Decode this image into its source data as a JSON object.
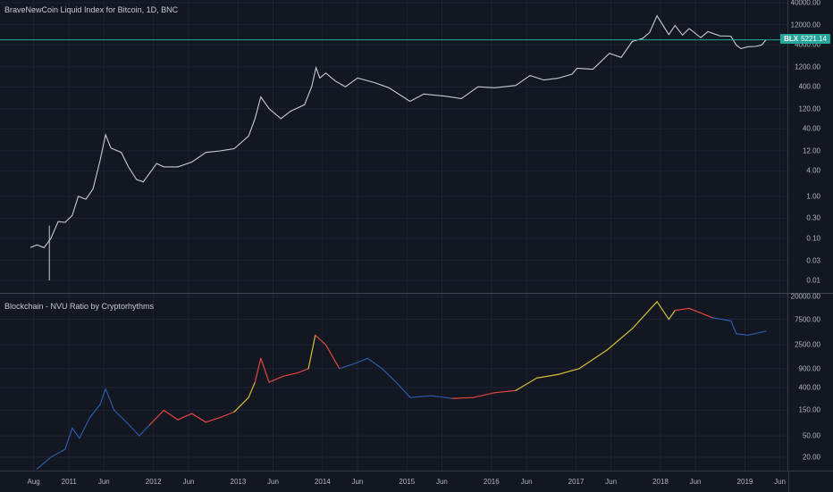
{
  "top_pane": {
    "title": "BraveNewCoin Liquid Index for Bitcoin, 1D, BNC",
    "symbol": "BLX",
    "last_price": "5221.14",
    "accent_color": "#26a69a"
  },
  "bottom_pane": {
    "title": "Blockchain - NVU Ratio by Cryptorhythms"
  },
  "chart_data": [
    {
      "type": "line",
      "scale": "log",
      "y_ticks": [
        "40000.00",
        "12000.00",
        "4000.00",
        "1200.00",
        "400.00",
        "120.00",
        "40.00",
        "12.00",
        "4.00",
        "1.00",
        "0.30",
        "0.10",
        "0.03",
        "0.01"
      ],
      "x_ticks": [
        "Aug",
        "2011",
        "Jun",
        "2012",
        "Jun",
        "2013",
        "Jun",
        "2014",
        "Jun",
        "2015",
        "Jun",
        "2016",
        "Jun",
        "2017",
        "Jun",
        "2018",
        "Jun",
        "2019",
        "Jun"
      ],
      "grid": true,
      "series": [
        {
          "color": "#c9cbd1",
          "points": [
            [
              "2010-07-18",
              0.06
            ],
            [
              "2010-08-15",
              0.07
            ],
            [
              "2010-09-15",
              0.06
            ],
            [
              "2010-10-15",
              0.1
            ],
            [
              "2010-11-15",
              0.25
            ],
            [
              "2010-12-15",
              0.24
            ],
            [
              "2011-01-15",
              0.35
            ],
            [
              "2011-02-10",
              1.0
            ],
            [
              "2011-03-15",
              0.85
            ],
            [
              "2011-04-15",
              1.5
            ],
            [
              "2011-05-15",
              7.0
            ],
            [
              "2011-06-08",
              29.0
            ],
            [
              "2011-07-01",
              14.0
            ],
            [
              "2011-08-15",
              11.0
            ],
            [
              "2011-09-15",
              5.0
            ],
            [
              "2011-10-20",
              2.5
            ],
            [
              "2011-11-18",
              2.2
            ],
            [
              "2012-01-15",
              6.0
            ],
            [
              "2012-02-15",
              5.0
            ],
            [
              "2012-04-15",
              5.0
            ],
            [
              "2012-06-15",
              6.5
            ],
            [
              "2012-08-15",
              11.0
            ],
            [
              "2012-10-15",
              12.0
            ],
            [
              "2012-12-15",
              13.5
            ],
            [
              "2013-02-15",
              27.0
            ],
            [
              "2013-03-15",
              70.0
            ],
            [
              "2013-04-09",
              230.0
            ],
            [
              "2013-05-15",
              120.0
            ],
            [
              "2013-07-05",
              70.0
            ],
            [
              "2013-08-15",
              105.0
            ],
            [
              "2013-10-15",
              150.0
            ],
            [
              "2013-11-15",
              400.0
            ],
            [
              "2013-12-04",
              1140.0
            ],
            [
              "2013-12-20",
              650.0
            ],
            [
              "2014-01-15",
              850.0
            ],
            [
              "2014-02-25",
              550.0
            ],
            [
              "2014-04-10",
              400.0
            ],
            [
              "2014-06-01",
              650.0
            ],
            [
              "2014-08-15",
              500.0
            ],
            [
              "2014-10-15",
              380.0
            ],
            [
              "2015-01-14",
              180.0
            ],
            [
              "2015-03-15",
              270.0
            ],
            [
              "2015-06-15",
              240.0
            ],
            [
              "2015-08-24",
              210.0
            ],
            [
              "2015-11-04",
              400.0
            ],
            [
              "2016-01-15",
              380.0
            ],
            [
              "2016-04-15",
              430.0
            ],
            [
              "2016-06-16",
              740.0
            ],
            [
              "2016-08-15",
              580.0
            ],
            [
              "2016-10-15",
              640.0
            ],
            [
              "2016-12-15",
              800.0
            ],
            [
              "2017-01-05",
              1100.0
            ],
            [
              "2017-03-15",
              1050.0
            ],
            [
              "2017-05-25",
              2500.0
            ],
            [
              "2017-07-15",
              2000.0
            ],
            [
              "2017-09-01",
              4800.0
            ],
            [
              "2017-10-15",
              5600.0
            ],
            [
              "2017-11-15",
              7800.0
            ],
            [
              "2017-12-17",
              19500.0
            ],
            [
              "2018-02-06",
              7000.0
            ],
            [
              "2018-03-05",
              11500.0
            ],
            [
              "2018-04-06",
              6800.0
            ],
            [
              "2018-05-05",
              9700.0
            ],
            [
              "2018-06-24",
              5900.0
            ],
            [
              "2018-07-25",
              8200.0
            ],
            [
              "2018-09-15",
              6500.0
            ],
            [
              "2018-11-01",
              6400.0
            ],
            [
              "2018-11-25",
              3900.0
            ],
            [
              "2018-12-15",
              3250.0
            ],
            [
              "2019-01-15",
              3600.0
            ],
            [
              "2019-02-15",
              3650.0
            ],
            [
              "2019-03-15",
              3950.0
            ],
            [
              "2019-04-02",
              5221.14
            ]
          ]
        }
      ]
    },
    {
      "type": "line",
      "scale": "log",
      "y_ticks": [
        "20000.00",
        "7500.00",
        "2500.00",
        "900.00",
        "400.00",
        "150.00",
        "50.00",
        "20.00"
      ],
      "grid": true,
      "series": [
        {
          "color_by_regime": [
            "#2a5ca8",
            "#e0473f",
            "#d4c230"
          ],
          "points": [
            [
              "2010-08-15",
              12
            ],
            [
              "2010-10-15",
              20
            ],
            [
              "2010-12-15",
              28
            ],
            [
              "2011-01-15",
              70
            ],
            [
              "2011-02-15",
              45
            ],
            [
              "2011-04-01",
              110
            ],
            [
              "2011-05-15",
              190
            ],
            [
              "2011-06-08",
              380
            ],
            [
              "2011-07-15",
              150
            ],
            [
              "2011-09-01",
              95
            ],
            [
              "2011-11-01",
              50
            ],
            [
              "2011-12-15",
              80
            ],
            [
              "2012-02-15",
              150
            ],
            [
              "2012-04-15",
              100
            ],
            [
              "2012-06-15",
              130
            ],
            [
              "2012-08-15",
              90
            ],
            [
              "2012-10-15",
              110
            ],
            [
              "2012-12-15",
              140
            ],
            [
              "2013-02-15",
              260
            ],
            [
              "2013-03-15",
              500
            ],
            [
              "2013-04-09",
              1400
            ],
            [
              "2013-05-15",
              500
            ],
            [
              "2013-07-15",
              650
            ],
            [
              "2013-09-15",
              750
            ],
            [
              "2013-11-01",
              900
            ],
            [
              "2013-12-01",
              3800
            ],
            [
              "2014-01-15",
              2500
            ],
            [
              "2014-03-15",
              900
            ],
            [
              "2014-05-15",
              1100
            ],
            [
              "2014-07-15",
              1400
            ],
            [
              "2014-09-15",
              900
            ],
            [
              "2014-11-15",
              500
            ],
            [
              "2015-01-15",
              260
            ],
            [
              "2015-04-15",
              280
            ],
            [
              "2015-07-15",
              250
            ],
            [
              "2015-10-15",
              260
            ],
            [
              "2016-01-15",
              320
            ],
            [
              "2016-04-15",
              350
            ],
            [
              "2016-07-15",
              600
            ],
            [
              "2016-10-15",
              700
            ],
            [
              "2017-01-15",
              900
            ],
            [
              "2017-05-15",
              2000
            ],
            [
              "2017-09-01",
              5000
            ],
            [
              "2017-12-17",
              16000
            ],
            [
              "2018-02-06",
              7500
            ],
            [
              "2018-03-05",
              11000
            ],
            [
              "2018-05-05",
              12000
            ],
            [
              "2018-08-15",
              8000
            ],
            [
              "2018-11-01",
              7000
            ],
            [
              "2018-11-25",
              4000
            ],
            [
              "2019-01-15",
              3800
            ],
            [
              "2019-04-02",
              4500
            ]
          ]
        }
      ]
    }
  ]
}
